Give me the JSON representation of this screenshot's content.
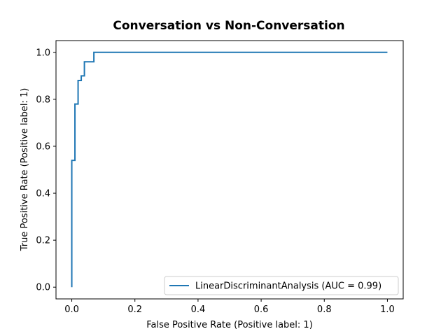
{
  "chart_data": {
    "type": "line",
    "title": "Conversation vs Non-Conversation",
    "xlabel": "False Positive Rate (Positive label: 1)",
    "ylabel": "True Positive Rate (Positive label: 1)",
    "xlim": [
      -0.05,
      1.05
    ],
    "ylim": [
      -0.05,
      1.05
    ],
    "xticks": [
      0.0,
      0.2,
      0.4,
      0.6,
      0.8,
      1.0
    ],
    "yticks": [
      0.0,
      0.2,
      0.4,
      0.6,
      0.8,
      1.0
    ],
    "xtick_labels": [
      "0.0",
      "0.2",
      "0.4",
      "0.6",
      "0.8",
      "1.0"
    ],
    "ytick_labels": [
      "0.0",
      "0.2",
      "0.4",
      "0.6",
      "0.8",
      "1.0"
    ],
    "grid": false,
    "legend": {
      "placement": "lower-right"
    },
    "series": [
      {
        "name": "LinearDiscriminantAnalysis (AUC = 0.99)",
        "color": "#1f77b4",
        "step": true,
        "x": [
          0.0,
          0.0,
          0.01,
          0.01,
          0.02,
          0.02,
          0.03,
          0.03,
          0.04,
          0.04,
          0.07,
          0.07,
          1.0
        ],
        "y": [
          0.0,
          0.54,
          0.54,
          0.78,
          0.78,
          0.88,
          0.88,
          0.9,
          0.9,
          0.96,
          0.96,
          1.0,
          1.0
        ]
      }
    ]
  }
}
